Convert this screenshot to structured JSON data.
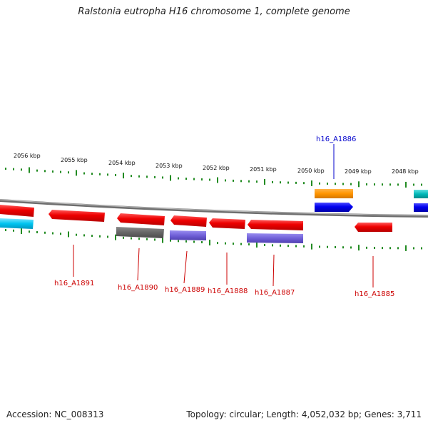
{
  "title": "Ralstonia eutropha H16 chromosome 1, complete genome",
  "footer": {
    "accession": "Accession: NC_008313",
    "summary": "Topology: circular; Length: 4,052,032 bp; Genes: 3,711"
  },
  "colors": {
    "forward_gene": "#0000ee",
    "reverse_gene": "#ee0000",
    "backbone": "#888888",
    "tick": "#228b22",
    "label_forward": "#0000cc",
    "label_reverse": "#cc0000"
  },
  "scale_labels": [
    "2056 kbp",
    "2055 kbp",
    "2054 kbp",
    "2053 kbp",
    "2052 kbp",
    "2051 kbp",
    "2050 kbp",
    "2049 kbp",
    "2048 kbp"
  ],
  "gene_labels": [
    {
      "name": "h16_A1886",
      "strand": "forward"
    },
    {
      "name": "h16_A1891",
      "strand": "reverse"
    },
    {
      "name": "h16_A1890",
      "strand": "reverse"
    },
    {
      "name": "h16_A1889",
      "strand": "reverse"
    },
    {
      "name": "h16_A1888",
      "strand": "reverse"
    },
    {
      "name": "h16_A1887",
      "strand": "reverse"
    },
    {
      "name": "h16_A1885",
      "strand": "reverse"
    }
  ]
}
